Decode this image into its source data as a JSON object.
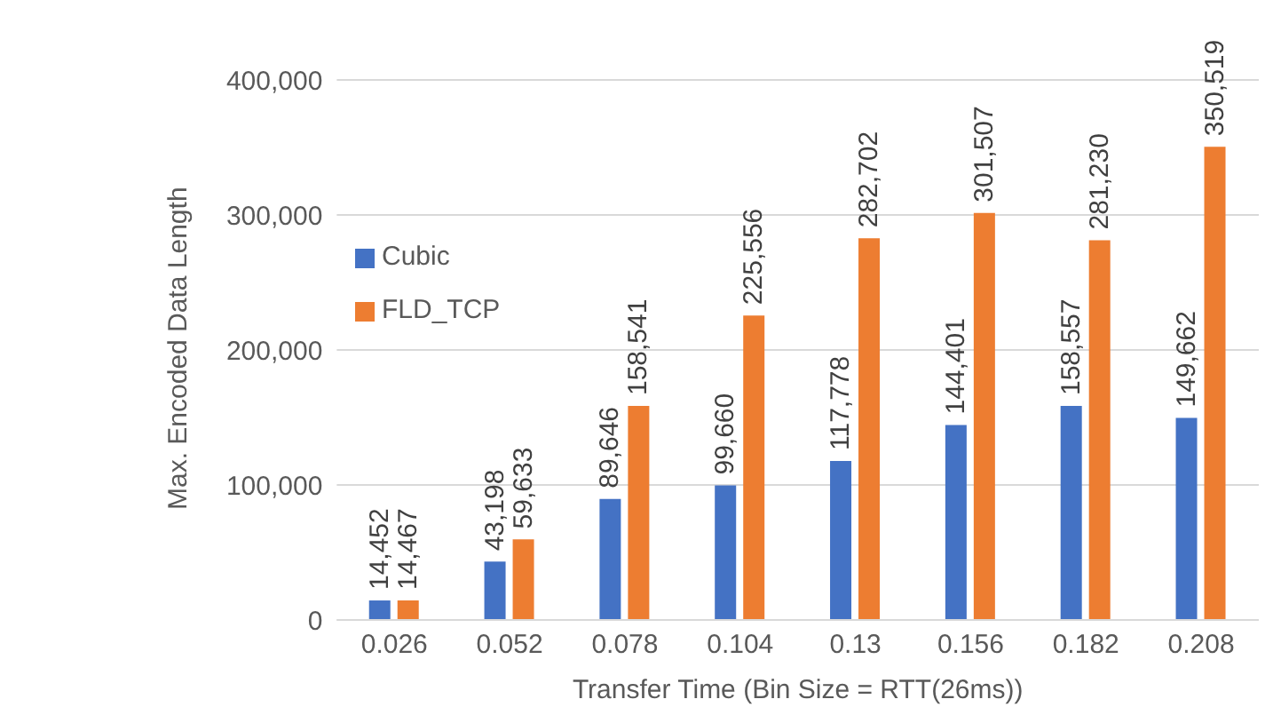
{
  "chart_data": {
    "type": "bar",
    "xlabel": "Transfer Time (Bin Size = RTT(26ms))",
    "ylabel": "Max. Encoded Data Length",
    "categories": [
      "0.026",
      "0.052",
      "0.078",
      "0.104",
      "0.13",
      "0.156",
      "0.182",
      "0.208"
    ],
    "series": [
      {
        "name": "Cubic",
        "color": "#4472c4",
        "values": [
          14452,
          43198,
          89646,
          99660,
          117778,
          144401,
          158557,
          149662
        ],
        "value_labels": [
          "14,452",
          "43,198",
          "89,646",
          "99,660",
          "117,778",
          "144,401",
          "158,557",
          "149,662"
        ]
      },
      {
        "name": "FLD_TCP",
        "color": "#ed7d31",
        "values": [
          14467,
          59633,
          158541,
          225556,
          282702,
          301507,
          281230,
          350519
        ],
        "value_labels": [
          "14,467",
          "59,633",
          "158,541",
          "225,556",
          "282,702",
          "301,507",
          "281,230",
          "350,519"
        ]
      }
    ],
    "ylim": [
      0,
      400000
    ],
    "yticks": [
      0,
      {
        "value": 100000,
        "label": "100,000"
      },
      {
        "value": 200000,
        "label": "200,000"
      },
      {
        "value": 300000,
        "label": "300,000"
      },
      {
        "value": 400000,
        "label": "400,000"
      }
    ],
    "grid": "y",
    "legend": "left"
  }
}
